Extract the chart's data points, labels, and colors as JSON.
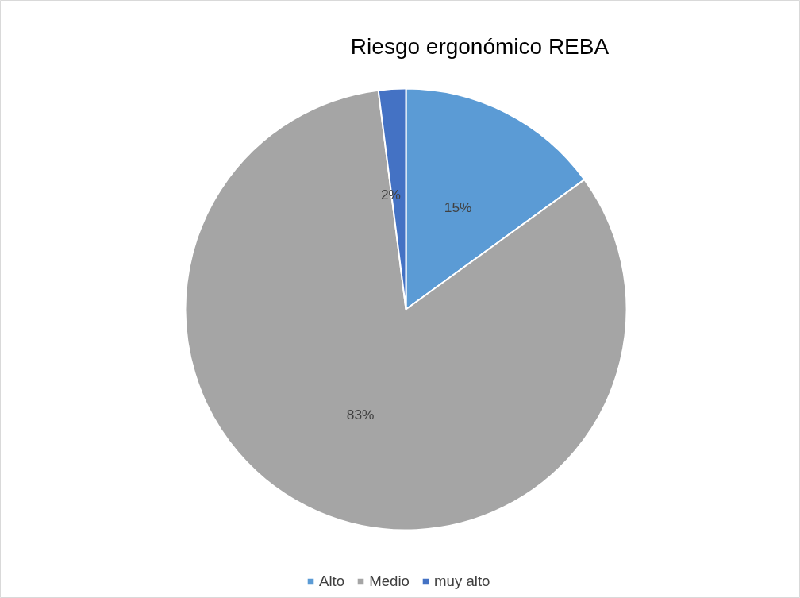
{
  "chart_data": {
    "type": "pie",
    "title": "Riesgo ergonómico REBA",
    "categories": [
      "Alto",
      "Medio",
      "muy alto"
    ],
    "values": [
      15,
      83,
      2
    ],
    "colors": [
      "#5b9bd5",
      "#a5a5a5",
      "#4472c4"
    ],
    "value_labels": [
      "15%",
      "83%",
      "2%"
    ],
    "legend": "bottom"
  }
}
